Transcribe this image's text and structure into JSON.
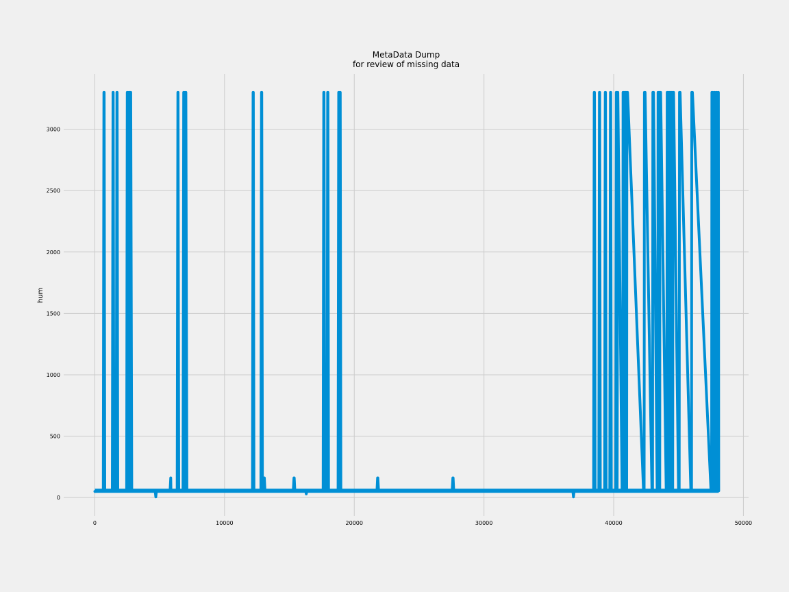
{
  "chart_data": {
    "type": "line",
    "title": "MetaData Dump",
    "subtitle": "for review of missing data",
    "xlabel": "",
    "ylabel": "hum",
    "xlim": [
      -2400,
      50400
    ],
    "ylim": [
      -150,
      3450
    ],
    "x_ticks": [
      0,
      10000,
      20000,
      30000,
      40000,
      50000
    ],
    "y_ticks": [
      0,
      500,
      1000,
      1500,
      2000,
      2500,
      3000
    ],
    "grid": true,
    "legend": "none",
    "baseline_value": 55,
    "series": [
      {
        "color": "#008fd5",
        "x": [
          0,
          650,
          700,
          720,
          770,
          1350,
          1400,
          1420,
          1470,
          1650,
          1700,
          1720,
          1770,
          2450,
          2500,
          2520,
          2550,
          2600,
          2620,
          2700,
          2750,
          2770,
          2850,
          4650,
          4700,
          4750,
          5800,
          5850,
          5870,
          6350,
          6400,
          6420,
          6470,
          6800,
          6850,
          6870,
          6950,
          7000,
          7020,
          7100,
          12150,
          12200,
          12220,
          12270,
          12800,
          12850,
          12870,
          12920,
          13000,
          13050,
          13070,
          13120,
          15300,
          15350,
          15370,
          15420,
          16250,
          16300,
          16350,
          17600,
          17650,
          17670,
          17720,
          17900,
          17950,
          17970,
          18020,
          18750,
          18800,
          18820,
          18880,
          18900,
          18920,
          18970,
          21750,
          21800,
          21820,
          21870,
          27550,
          27600,
          27620,
          27670,
          36850,
          36900,
          36950,
          38450,
          38500,
          38520,
          38570,
          38850,
          38900,
          38920,
          38970,
          39300,
          39350,
          39370,
          39420,
          39700,
          39750,
          39770,
          39820,
          40150,
          40200,
          40250,
          40270,
          40320,
          40650,
          40700,
          40720,
          40800,
          40850,
          40870,
          40950,
          41000,
          41020,
          41070,
          42300,
          42350,
          42370,
          42420,
          42950,
          43000,
          43020,
          43070,
          43350,
          43400,
          43420,
          43500,
          43550,
          43570,
          43620,
          44050,
          44100,
          44120,
          44200,
          44250,
          44270,
          44350,
          44400,
          44420,
          44500,
          44550,
          44570,
          44620,
          45000,
          45050,
          45070,
          45120,
          45950,
          46000,
          46020,
          46070,
          47500,
          47550,
          47570,
          47620,
          47700,
          47750,
          47770,
          47850,
          47900,
          47920,
          48000,
          48050,
          48070,
          48100
        ],
        "y": [
          50,
          55,
          3300,
          3300,
          55,
          55,
          3300,
          3300,
          55,
          55,
          3300,
          3300,
          55,
          55,
          3300,
          3300,
          55,
          55,
          3300,
          3300,
          55,
          3300,
          55,
          55,
          5,
          55,
          55,
          160,
          55,
          55,
          3300,
          3300,
          55,
          55,
          3300,
          3300,
          55,
          3300,
          3300,
          55,
          55,
          3300,
          3300,
          55,
          55,
          3300,
          3300,
          55,
          55,
          160,
          160,
          55,
          55,
          160,
          160,
          55,
          55,
          30,
          55,
          55,
          3300,
          3300,
          55,
          55,
          3300,
          3300,
          55,
          55,
          3300,
          3300,
          55,
          3300,
          3300,
          55,
          55,
          160,
          160,
          55,
          55,
          160,
          160,
          55,
          55,
          5,
          55,
          55,
          3300,
          3300,
          55,
          55,
          3300,
          3300,
          55,
          55,
          3300,
          3300,
          55,
          55,
          3300,
          3300,
          55,
          55,
          3300,
          3300,
          55,
          3300,
          55,
          55,
          3300,
          3300,
          55,
          3300,
          3300,
          55,
          3300,
          3300,
          55,
          55,
          3300,
          3300,
          55,
          55,
          3300,
          3300,
          55,
          55,
          3300,
          3300,
          55,
          3300,
          3300,
          55,
          55,
          3300,
          3300,
          55,
          3300,
          3300,
          55,
          3300,
          3300,
          55,
          3300,
          3300,
          55,
          55,
          3300,
          3300,
          55,
          55,
          3300,
          3300,
          55,
          55,
          3300,
          3300,
          55,
          3300,
          3300,
          55,
          3300,
          3300,
          55,
          3300,
          3300,
          55
        ]
      }
    ]
  }
}
